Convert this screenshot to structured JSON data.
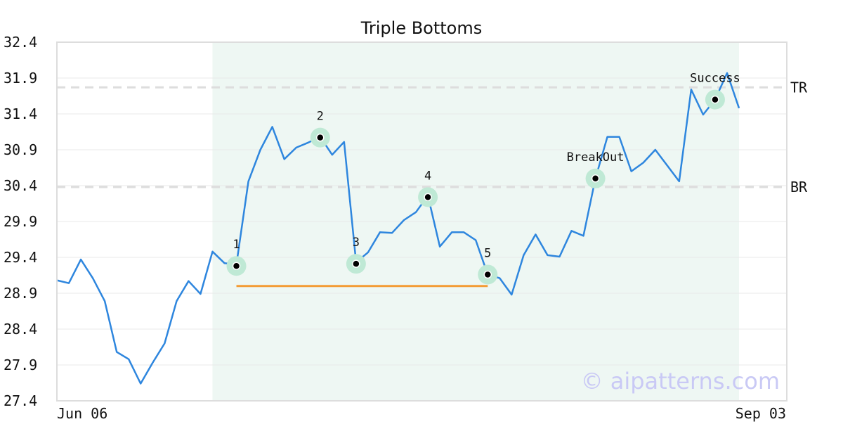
{
  "watermark": "© aipatterns.com",
  "colors": {
    "line": "#2e86de",
    "support": "#f39c35",
    "highlight_band": "#eef7f3",
    "marker_halo": "#bfe9d5",
    "ref_line": "#dddddd",
    "grid": "#e8e8e8",
    "frame": "#dddddd"
  },
  "chart_data": {
    "type": "line",
    "title": "Triple Bottoms",
    "xlabel": "",
    "ylabel": "",
    "ylim": [
      27.4,
      32.4
    ],
    "yticks": [
      "32.4",
      "31.9",
      "31.4",
      "30.9",
      "30.4",
      "29.9",
      "29.4",
      "28.9",
      "28.4",
      "27.9",
      "27.4"
    ],
    "xticks": [
      "Jun 06",
      "Sep 03"
    ],
    "grid": "horizontal",
    "series": [
      {
        "values": [
          29.08,
          29.04,
          29.37,
          29.11,
          28.79,
          28.08,
          27.98,
          27.64,
          27.93,
          28.2,
          28.79,
          29.07,
          28.89,
          29.48,
          29.32,
          29.3,
          30.46,
          30.9,
          31.22,
          30.77,
          30.93,
          31.0,
          31.08,
          30.83,
          31.01,
          29.33,
          29.47,
          29.75,
          29.74,
          29.92,
          30.03,
          30.26,
          29.55,
          29.75,
          29.75,
          29.64,
          29.16,
          29.11,
          28.88,
          29.43,
          29.72,
          29.43,
          29.41,
          29.77,
          29.7,
          30.5,
          31.08,
          31.08,
          30.6,
          30.72,
          30.9,
          30.68,
          30.46,
          31.74,
          31.39,
          31.6,
          31.97,
          31.48
        ]
      }
    ],
    "highlight_band": {
      "start_index": 13,
      "end_index": 57
    },
    "support_line": {
      "start_index": 15,
      "end_index": 36,
      "y": 29.0
    },
    "reference_lines": [
      {
        "label": "TR",
        "y": 31.77
      },
      {
        "label": "BR",
        "y": 30.38
      }
    ],
    "markers": [
      {
        "label": "1",
        "index": 15,
        "y": 29.28
      },
      {
        "label": "2",
        "index": 22,
        "y": 31.07
      },
      {
        "label": "3",
        "index": 25,
        "y": 29.31
      },
      {
        "label": "4",
        "index": 31,
        "y": 30.24
      },
      {
        "label": "5",
        "index": 36,
        "y": 29.16
      },
      {
        "label": "BreakOut",
        "index": 45,
        "y": 30.5
      },
      {
        "label": "Success",
        "index": 55,
        "y": 31.6
      }
    ]
  }
}
